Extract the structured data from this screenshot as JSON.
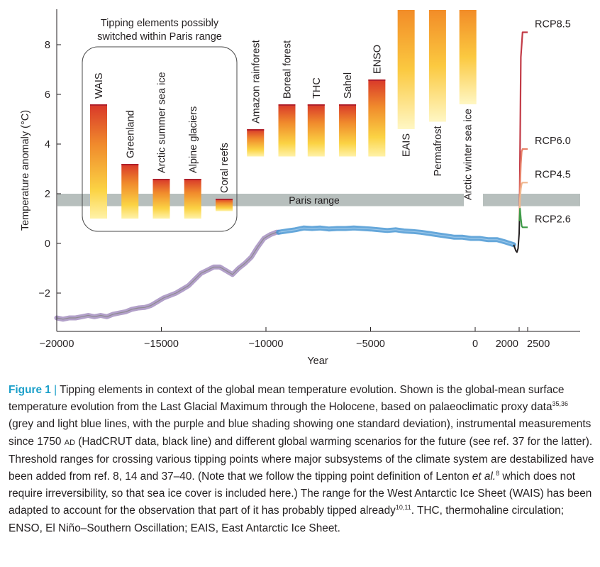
{
  "chart_data": {
    "type": "line",
    "xlabel": "Year",
    "ylabel": "Temperature anomaly (°C)",
    "ylim": [
      -3.6,
      9.4
    ],
    "yticks": [
      8,
      6,
      4,
      2,
      0,
      -2
    ],
    "ytick_labels": [
      "8",
      "6",
      "4",
      "2",
      "0",
      "−2"
    ],
    "xticks": [
      {
        "label": "−20000",
        "year": -20000
      },
      {
        "label": "−15000",
        "year": -15000
      },
      {
        "label": "−10000",
        "year": -10000
      },
      {
        "label": "−5000",
        "year": -5000
      },
      {
        "label": "0",
        "year": 0
      },
      {
        "label": "2000",
        "year": 2000
      },
      {
        "label": "2500",
        "year": 2500
      }
    ],
    "x_axis_note": "the axis is compressed between 0 and 2000, and from 2000 to 2500 it is expanded",
    "grid": false,
    "paris_range": {
      "label": "Paris range",
      "y": [
        1.5,
        2.0
      ]
    },
    "paris_group_label": [
      "Tipping elements possibly",
      "switched within Paris range"
    ],
    "tipping_elements": [
      {
        "name": "WAIS",
        "year": -18000,
        "low": 1.0,
        "high": 5.6,
        "in_paris_box": true
      },
      {
        "name": "Greenland",
        "year": -16500,
        "low": 1.0,
        "high": 3.2,
        "in_paris_box": true
      },
      {
        "name": "Arctic summer sea ice",
        "year": -15000,
        "low": 1.0,
        "high": 2.6,
        "in_paris_box": true
      },
      {
        "name": "Alpine glaciers",
        "year": -13500,
        "low": 1.0,
        "high": 2.6,
        "in_paris_box": true
      },
      {
        "name": "Coral reefs",
        "year": -12000,
        "low": 1.3,
        "high": 1.8,
        "in_paris_box": true
      },
      {
        "name": "Amazon rainforest",
        "year": -10500,
        "low": 3.5,
        "high": 4.6,
        "in_paris_box": false
      },
      {
        "name": "Boreal forest",
        "year": -9000,
        "low": 3.5,
        "high": 5.6,
        "in_paris_box": false
      },
      {
        "name": "THC",
        "year": -7600,
        "low": 3.5,
        "high": 5.6,
        "in_paris_box": false
      },
      {
        "name": "Sahel",
        "year": -6100,
        "low": 3.5,
        "high": 5.6,
        "in_paris_box": false
      },
      {
        "name": "ENSO",
        "year": -4700,
        "low": 3.5,
        "high": 6.6,
        "in_paris_box": false
      },
      {
        "name": "EAIS",
        "year": -3300,
        "low": 4.6,
        "high": 9.4,
        "in_paris_box": false
      },
      {
        "name": "Permafrost",
        "year": -1800,
        "low": 4.9,
        "high": 9.4,
        "in_paris_box": false
      },
      {
        "name": "Arctic winter sea ice",
        "year": -350,
        "low": 5.6,
        "high": 9.4,
        "in_paris_box": false
      }
    ],
    "series": [
      {
        "name": "Proxy reconstruction (Last Glacial Maximum)",
        "color": "#a58fbf",
        "x": [
          -20000,
          -19700,
          -19400,
          -19100,
          -18800,
          -18500,
          -18200,
          -17900,
          -17600,
          -17300,
          -17000,
          -16700,
          -16400,
          -16100,
          -15800,
          -15500,
          -15200,
          -14900,
          -14600,
          -14300,
          -14000,
          -13700,
          -13400,
          -13100,
          -12800,
          -12500,
          -12200,
          -11900,
          -11600,
          -11300,
          -11000,
          -10700,
          -10400,
          -10100,
          -9800,
          -9500,
          -9400
        ],
        "y": [
          -3.0,
          -3.05,
          -3.0,
          -3.0,
          -2.95,
          -2.9,
          -2.95,
          -2.9,
          -2.95,
          -2.85,
          -2.8,
          -2.75,
          -2.65,
          -2.6,
          -2.58,
          -2.5,
          -2.35,
          -2.2,
          -2.1,
          -2.0,
          -1.85,
          -1.7,
          -1.45,
          -1.2,
          -1.08,
          -0.95,
          -0.95,
          -1.1,
          -1.25,
          -1.0,
          -0.8,
          -0.55,
          -0.15,
          0.2,
          0.35,
          0.45,
          0.45
        ]
      },
      {
        "name": "Proxy reconstruction (Holocene)",
        "color": "#4a98d4",
        "x": [
          -9400,
          -9000,
          -8600,
          -8200,
          -7800,
          -7400,
          -7000,
          -6600,
          -6200,
          -5800,
          -5400,
          -5000,
          -4600,
          -4200,
          -3800,
          -3400,
          -3000,
          -2600,
          -2200,
          -1800,
          -1400,
          -1000,
          -600,
          -200,
          200,
          600,
          1000,
          1400,
          1750
        ],
        "y": [
          0.45,
          0.5,
          0.55,
          0.62,
          0.6,
          0.62,
          0.58,
          0.6,
          0.6,
          0.62,
          0.6,
          0.58,
          0.55,
          0.52,
          0.55,
          0.5,
          0.48,
          0.45,
          0.4,
          0.35,
          0.3,
          0.25,
          0.25,
          0.2,
          0.2,
          0.15,
          0.15,
          0.05,
          -0.05
        ]
      },
      {
        "name": "Instrumental (HadCRUT)",
        "color": "#231f20",
        "x": [
          1750,
          1850,
          1900,
          1950,
          2000,
          2016
        ],
        "y": [
          -0.05,
          -0.3,
          -0.35,
          -0.2,
          0.4,
          0.9
        ]
      },
      {
        "name": "RCP8.5",
        "color": "#c23b47",
        "x": [
          2016,
          2050,
          2100,
          2200,
          2300,
          2400,
          2500
        ],
        "y": [
          0.9,
          3.5,
          7.5,
          8.5,
          8.5,
          8.5,
          8.5
        ]
      },
      {
        "name": "RCP6.0",
        "color": "#e8826a",
        "x": [
          2016,
          2050,
          2100,
          2150,
          2200,
          2300,
          2400,
          2500
        ],
        "y": [
          0.9,
          2.2,
          3.2,
          3.7,
          3.8,
          3.8,
          3.8,
          3.8
        ]
      },
      {
        "name": "RCP4.5",
        "color": "#f0b78e",
        "x": [
          2016,
          2050,
          2100,
          2150,
          2200,
          2300,
          2400,
          2500
        ],
        "y": [
          0.9,
          1.8,
          2.2,
          2.4,
          2.45,
          2.45,
          2.45,
          2.45
        ]
      },
      {
        "name": "RCP2.6",
        "color": "#3d9a47",
        "x": [
          2016,
          2050,
          2100,
          2150,
          2200,
          2300,
          2400,
          2500
        ],
        "y": [
          0.9,
          1.4,
          1.0,
          0.7,
          0.65,
          0.65,
          0.65,
          0.65
        ]
      }
    ]
  },
  "caption": {
    "label": "Figure 1",
    "separator": "|",
    "text_1": "Tipping elements in context of the global mean temperature evolution. Shown is the global-mean surface temperature evolution from the Last Glacial Maximum through the Holocene, based on palaeoclimatic proxy data",
    "ref_1": "35,36",
    "text_2": "(grey and light blue lines, with the purple and blue shading showing one standard deviation), instrumental measurements since 1750",
    "era": "AD",
    "text_3": "(HadCRUT data, black line) and different global warming scenarios for the future (see ref. 37 for the latter). Threshold ranges for crossing various tipping points where major subsystems of the climate system are destabilized have been added from ref. 8, 14 and 37–40. (Note that we follow the tipping point definition of Lenton",
    "etal": "et al.",
    "ref_2": "8",
    "text_4": "which does not require irreversibility, so that sea ice cover is included here.) The range for the West Antarctic Ice Sheet (WAIS) has been adapted to account for the observation that part of it has probably tipped already",
    "ref_3": "10,11",
    "text_5": ". THC, thermohaline circulation; ENSO, El Niño–Southern Oscillation; EAIS, East Antarctic Ice Sheet."
  }
}
